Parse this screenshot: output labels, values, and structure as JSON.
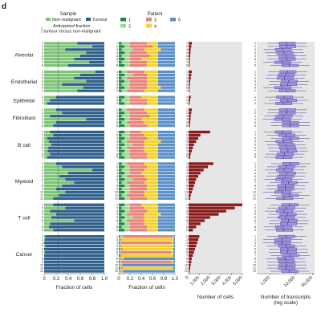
{
  "panel_label": "d",
  "legends": {
    "sample": {
      "title": "Sample",
      "items": [
        {
          "label": "Non-malignant",
          "color": "#7cc576"
        },
        {
          "label": "Tumour",
          "color": "#2f5f8a"
        }
      ]
    },
    "anticipated": "Anticipated fraction\ntumour versus non-malignant",
    "patient": {
      "title": "Patient",
      "items": [
        {
          "label": "1",
          "color": "#1a8c3c"
        },
        {
          "label": "2",
          "color": "#9fd89a"
        },
        {
          "label": "3",
          "color": "#e8837a"
        },
        {
          "label": "4",
          "color": "#f2d22e"
        },
        {
          "label": "5",
          "color": "#5b8fc7"
        }
      ]
    }
  },
  "row_labels": {
    "types": [
      "Alveolar",
      "Endothelial",
      "Epithelial",
      "Fibroblast",
      "B cell",
      "Myeloid",
      "T cell",
      "Cancer"
    ]
  },
  "chart_data": [
    {
      "type": "bar",
      "orientation": "horizontal",
      "stacked": true,
      "xlabel": "Fraction of cells",
      "xticks": [
        "0",
        "0.2",
        "0.4",
        "0.6",
        "0.8",
        "1.0"
      ],
      "xlim": [
        0,
        1
      ],
      "series": [
        {
          "name": "Non-malignant",
          "color": "#7cc576"
        },
        {
          "name": "Tumour",
          "color": "#2f5f8a"
        }
      ],
      "groups": [
        {
          "name": "Alveolar",
          "non_malignant": [
            0.55,
            0.8,
            0.35,
            0.7,
            0.6,
            0.5,
            0.75,
            0.4
          ]
        },
        {
          "name": "Endothelial",
          "non_malignant": [
            0.85,
            0.6,
            0.5,
            0.7,
            0.3,
            0.65,
            0.55
          ]
        },
        {
          "name": "Epithelial",
          "non_malignant": [
            0.2,
            0.1,
            0.05
          ]
        },
        {
          "name": "Fibroblast",
          "non_malignant": [
            0.2,
            0.3,
            0.1,
            0.7,
            0.2,
            0.15
          ]
        },
        {
          "name": "B cell",
          "non_malignant": [
            0.1,
            0.15,
            0.05,
            0.08,
            0.12,
            0.07,
            0.06,
            0.1,
            0.05
          ]
        },
        {
          "name": "Myeloid",
          "non_malignant": [
            0.2,
            0.3,
            0.8,
            0.4,
            0.25,
            0.35,
            0.5,
            0.3,
            0.2,
            0.35,
            0.25,
            0.15
          ]
        },
        {
          "name": "T cell",
          "non_malignant": [
            0.15,
            0.35,
            0.1,
            0.2,
            0.12,
            0.5,
            0.1,
            0.08,
            0.15
          ]
        },
        {
          "name": "Cancer",
          "non_malignant": [
            0.02,
            0.01,
            0.0,
            0.02,
            0.0,
            0.01,
            0.0,
            0.0,
            0.0,
            0.0,
            0.0,
            0.0
          ]
        }
      ],
      "anticipated_fraction": 0.23
    },
    {
      "type": "bar",
      "orientation": "horizontal",
      "stacked": true,
      "xlabel": "Fraction of cells",
      "xticks": [
        "0",
        "0.2",
        "0.4",
        "0.6",
        "0.8",
        "1.0"
      ],
      "xlim": [
        0,
        1
      ],
      "series_names": [
        "1",
        "2",
        "3",
        "4",
        "5"
      ],
      "groups": [
        {
          "name": "Alveolar",
          "rows": [
            [
              0.05,
              0.15,
              0.3,
              0.2,
              0.3
            ],
            [
              0.1,
              0.1,
              0.4,
              0.1,
              0.3
            ],
            [
              0.05,
              0.2,
              0.2,
              0.3,
              0.25
            ],
            [
              0.1,
              0.1,
              0.3,
              0.2,
              0.3
            ],
            [
              0.05,
              0.15,
              0.35,
              0.15,
              0.3
            ],
            [
              0.1,
              0.1,
              0.2,
              0.3,
              0.3
            ],
            [
              0.05,
              0.15,
              0.3,
              0.2,
              0.3
            ],
            [
              0.1,
              0.1,
              0.3,
              0.2,
              0.3
            ]
          ]
        },
        {
          "name": "Endothelial",
          "rows": [
            [
              0.05,
              0.1,
              0.3,
              0.25,
              0.3
            ],
            [
              0.1,
              0.15,
              0.25,
              0.2,
              0.3
            ],
            [
              0.05,
              0.1,
              0.35,
              0.2,
              0.3
            ],
            [
              0.1,
              0.1,
              0.3,
              0.2,
              0.3
            ],
            [
              0.05,
              0.15,
              0.3,
              0.2,
              0.3
            ],
            [
              0.1,
              0.1,
              0.3,
              0.25,
              0.25
            ],
            [
              0.05,
              0.1,
              0.3,
              0.25,
              0.3
            ]
          ]
        },
        {
          "name": "Epithelial",
          "rows": [
            [
              0.1,
              0.1,
              0.2,
              0.3,
              0.3
            ],
            [
              0.05,
              0.15,
              0.3,
              0.2,
              0.3
            ],
            [
              0.1,
              0.1,
              0.3,
              0.2,
              0.3
            ]
          ]
        },
        {
          "name": "Fibroblast",
          "rows": [
            [
              0.05,
              0.1,
              0.3,
              0.25,
              0.3
            ],
            [
              0.1,
              0.1,
              0.3,
              0.2,
              0.3
            ],
            [
              0.05,
              0.15,
              0.35,
              0.15,
              0.3
            ],
            [
              0.1,
              0.1,
              0.2,
              0.3,
              0.3
            ],
            [
              0.05,
              0.1,
              0.3,
              0.25,
              0.3
            ],
            [
              0.1,
              0.1,
              0.3,
              0.2,
              0.3
            ]
          ]
        },
        {
          "name": "B cell",
          "rows": [
            [
              0.1,
              0.1,
              0.2,
              0.3,
              0.3
            ],
            [
              0.05,
              0.15,
              0.25,
              0.25,
              0.3
            ],
            [
              0.1,
              0.1,
              0.3,
              0.2,
              0.3
            ],
            [
              0.05,
              0.1,
              0.3,
              0.3,
              0.25
            ],
            [
              0.1,
              0.15,
              0.2,
              0.25,
              0.3
            ],
            [
              0.05,
              0.1,
              0.3,
              0.25,
              0.3
            ],
            [
              0.1,
              0.1,
              0.25,
              0.25,
              0.3
            ],
            [
              0.05,
              0.15,
              0.3,
              0.2,
              0.3
            ],
            [
              0.1,
              0.1,
              0.3,
              0.2,
              0.3
            ]
          ]
        },
        {
          "name": "Myeloid",
          "rows": [
            [
              0.05,
              0.1,
              0.3,
              0.25,
              0.3
            ],
            [
              0.1,
              0.1,
              0.3,
              0.2,
              0.3
            ],
            [
              0.05,
              0.15,
              0.25,
              0.25,
              0.3
            ],
            [
              0.1,
              0.1,
              0.2,
              0.3,
              0.3
            ],
            [
              0.05,
              0.1,
              0.3,
              0.25,
              0.3
            ],
            [
              0.1,
              0.15,
              0.25,
              0.2,
              0.3
            ],
            [
              0.05,
              0.1,
              0.3,
              0.25,
              0.3
            ],
            [
              0.1,
              0.1,
              0.3,
              0.2,
              0.3
            ],
            [
              0.05,
              0.15,
              0.3,
              0.2,
              0.3
            ],
            [
              0.1,
              0.1,
              0.25,
              0.25,
              0.3
            ],
            [
              0.05,
              0.1,
              0.3,
              0.25,
              0.3
            ],
            [
              0.1,
              0.1,
              0.3,
              0.2,
              0.3
            ]
          ]
        },
        {
          "name": "T cell",
          "rows": [
            [
              0.1,
              0.1,
              0.2,
              0.3,
              0.3
            ],
            [
              0.05,
              0.15,
              0.25,
              0.25,
              0.3
            ],
            [
              0.1,
              0.1,
              0.3,
              0.2,
              0.3
            ],
            [
              0.05,
              0.1,
              0.3,
              0.3,
              0.25
            ],
            [
              0.1,
              0.15,
              0.2,
              0.25,
              0.3
            ],
            [
              0.05,
              0.1,
              0.3,
              0.25,
              0.3
            ],
            [
              0.1,
              0.1,
              0.25,
              0.25,
              0.3
            ],
            [
              0.05,
              0.15,
              0.3,
              0.2,
              0.3
            ],
            [
              0.1,
              0.1,
              0.3,
              0.2,
              0.3
            ]
          ]
        },
        {
          "name": "Cancer",
          "rows": [
            [
              0.02,
              0.05,
              0.9,
              0.01,
              0.02
            ],
            [
              0.01,
              0.02,
              0.02,
              0.93,
              0.02
            ],
            [
              0.02,
              0.02,
              0.9,
              0.03,
              0.03
            ],
            [
              0.01,
              0.01,
              0.02,
              0.94,
              0.02
            ],
            [
              0.02,
              0.02,
              0.03,
              0.9,
              0.03
            ],
            [
              0.01,
              0.02,
              0.9,
              0.04,
              0.03
            ],
            [
              0.02,
              0.01,
              0.02,
              0.92,
              0.03
            ],
            [
              0.01,
              0.02,
              0.03,
              0.02,
              0.92
            ],
            [
              0.02,
              0.02,
              0.9,
              0.03,
              0.03
            ],
            [
              0.01,
              0.01,
              0.02,
              0.02,
              0.94
            ],
            [
              0.02,
              0.02,
              0.03,
              0.9,
              0.03
            ],
            [
              0.01,
              0.02,
              0.02,
              0.02,
              0.93
            ]
          ]
        }
      ]
    },
    {
      "type": "bar",
      "orientation": "horizontal",
      "xlabel": "Number of cells",
      "xticks": [
        "0",
        "1,000",
        "2,000",
        "3,000",
        "4,000",
        "5,000"
      ],
      "xlim": [
        0,
        5000
      ],
      "color": "#8b1a1a",
      "groups": [
        {
          "name": "Alveolar",
          "values": [
            300,
            250,
            200,
            180,
            150,
            120,
            100,
            90
          ]
        },
        {
          "name": "Endothelial",
          "values": [
            300,
            250,
            200,
            150,
            120,
            100,
            80
          ]
        },
        {
          "name": "Epithelial",
          "values": [
            200,
            150,
            100
          ]
        },
        {
          "name": "Fibroblast",
          "values": [
            300,
            250,
            200,
            180,
            150,
            100
          ]
        },
        {
          "name": "B cell",
          "values": [
            2000,
            1100,
            900,
            700,
            500,
            400,
            300,
            200,
            150
          ]
        },
        {
          "name": "Myeloid",
          "values": [
            2300,
            1800,
            1400,
            1100,
            900,
            700,
            600,
            500,
            400,
            300,
            200,
            150
          ]
        },
        {
          "name": "T cell",
          "values": [
            5000,
            4300,
            3500,
            2800,
            2000,
            1500,
            1100,
            700,
            400
          ]
        },
        {
          "name": "Cancer",
          "values": [
            1000,
            900,
            800,
            700,
            600,
            500,
            400,
            300,
            250,
            200,
            150,
            100
          ]
        }
      ]
    },
    {
      "type": "box",
      "orientation": "horizontal",
      "xlabel": "Number of transcripts\n(log scale)",
      "xscale": "log",
      "xticks": [
        "1,000",
        "10,000",
        "50,000"
      ],
      "xlim": [
        300,
        60000
      ],
      "color": "#6a5acd",
      "groups": [
        {
          "name": "Alveolar",
          "rows": 8
        },
        {
          "name": "Endothelial",
          "rows": 7
        },
        {
          "name": "Epithelial",
          "rows": 3
        },
        {
          "name": "Fibroblast",
          "rows": 6
        },
        {
          "name": "B cell",
          "rows": 9
        },
        {
          "name": "Myeloid",
          "rows": 12
        },
        {
          "name": "T cell",
          "rows": 9
        },
        {
          "name": "Cancer",
          "rows": 12
        }
      ],
      "box_template": {
        "q1": 2000,
        "median": 4000,
        "q3": 9000,
        "lo": 700,
        "hi": 25000
      }
    }
  ]
}
